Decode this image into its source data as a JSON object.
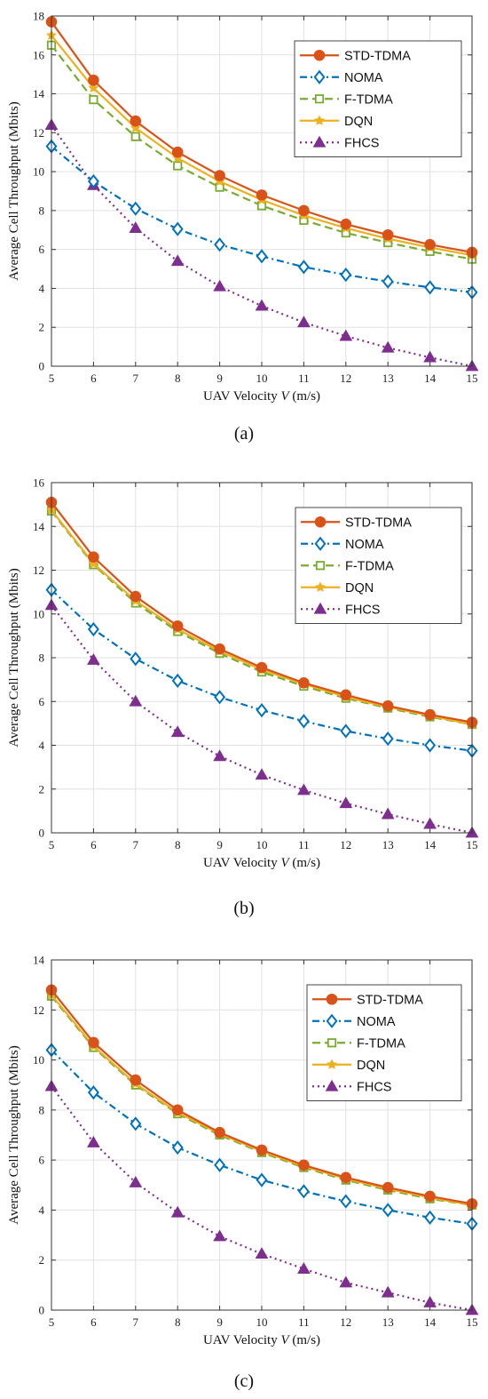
{
  "legend_entries": [
    "STD-TDMA",
    "NOMA",
    "F-TDMA",
    "DQN",
    "FHCS"
  ],
  "series_styles": [
    {
      "color": "#d95319",
      "dash": "",
      "marker": "circle-filled"
    },
    {
      "color": "#0072bd",
      "dash": "8,4,2,4",
      "marker": "diamond-open"
    },
    {
      "color": "#77ac30",
      "dash": "9,5",
      "marker": "square-open"
    },
    {
      "color": "#edb120",
      "dash": "",
      "marker": "star-filled"
    },
    {
      "color": "#7e2f8e",
      "dash": "2,4",
      "marker": "triangle-filled"
    }
  ],
  "chart_data": [
    {
      "type": "line",
      "caption": "(a)",
      "xlabel_prefix": "UAV Velocity ",
      "xlabel_var": "V",
      "xlabel_suffix": " (m/s)",
      "ylabel": "Average Cell Throughput (Mbits)",
      "xlim": [
        5,
        15
      ],
      "ylim": [
        0,
        18
      ],
      "xticks": [
        5,
        6,
        7,
        8,
        9,
        10,
        11,
        12,
        13,
        14,
        15
      ],
      "yticks": [
        0,
        2,
        4,
        6,
        8,
        10,
        12,
        14,
        16,
        18
      ],
      "grid": true,
      "legend_position": "top-right",
      "x": [
        5,
        6,
        7,
        8,
        9,
        10,
        11,
        12,
        13,
        14,
        15
      ],
      "series": [
        {
          "name": "STD-TDMA",
          "values": [
            17.7,
            14.7,
            12.6,
            11.0,
            9.8,
            8.8,
            8.0,
            7.3,
            6.75,
            6.25,
            5.85
          ]
        },
        {
          "name": "NOMA",
          "values": [
            11.3,
            9.5,
            8.1,
            7.05,
            6.25,
            5.65,
            5.1,
            4.7,
            4.35,
            4.05,
            3.8
          ]
        },
        {
          "name": "F-TDMA",
          "values": [
            16.5,
            13.7,
            11.8,
            10.3,
            9.2,
            8.25,
            7.5,
            6.85,
            6.35,
            5.9,
            5.5
          ]
        },
        {
          "name": "DQN",
          "values": [
            17.0,
            14.3,
            12.25,
            10.7,
            9.5,
            8.55,
            7.75,
            7.1,
            6.55,
            6.1,
            5.7
          ]
        },
        {
          "name": "FHCS",
          "values": [
            12.4,
            9.3,
            7.1,
            5.4,
            4.1,
            3.1,
            2.25,
            1.55,
            0.95,
            0.45,
            0.0
          ]
        }
      ]
    },
    {
      "type": "line",
      "caption": "(b)",
      "xlabel_prefix": "UAV Velocity ",
      "xlabel_var": "V",
      "xlabel_suffix": " (m/s)",
      "ylabel": "Average Cell Throughput (Mbits)",
      "xlim": [
        5,
        15
      ],
      "ylim": [
        0,
        16
      ],
      "xticks": [
        5,
        6,
        7,
        8,
        9,
        10,
        11,
        12,
        13,
        14,
        15
      ],
      "yticks": [
        0,
        2,
        4,
        6,
        8,
        10,
        12,
        14,
        16
      ],
      "grid": true,
      "legend_position": "top-right",
      "x": [
        5,
        6,
        7,
        8,
        9,
        10,
        11,
        12,
        13,
        14,
        15
      ],
      "series": [
        {
          "name": "STD-TDMA",
          "values": [
            15.1,
            12.6,
            10.8,
            9.45,
            8.4,
            7.55,
            6.85,
            6.3,
            5.8,
            5.4,
            5.05
          ]
        },
        {
          "name": "NOMA",
          "values": [
            11.1,
            9.3,
            7.95,
            6.95,
            6.2,
            5.6,
            5.1,
            4.65,
            4.3,
            4.0,
            3.75
          ]
        },
        {
          "name": "F-TDMA",
          "values": [
            14.7,
            12.25,
            10.5,
            9.2,
            8.2,
            7.35,
            6.7,
            6.15,
            5.7,
            5.3,
            4.95
          ]
        },
        {
          "name": "DQN",
          "values": [
            14.75,
            12.3,
            10.6,
            9.3,
            8.3,
            7.45,
            6.8,
            6.2,
            5.75,
            5.35,
            4.95
          ]
        },
        {
          "name": "FHCS",
          "values": [
            10.4,
            7.9,
            6.0,
            4.6,
            3.5,
            2.65,
            1.95,
            1.35,
            0.85,
            0.4,
            0.0
          ]
        }
      ]
    },
    {
      "type": "line",
      "caption": "(c)",
      "xlabel_prefix": "UAV Velocity ",
      "xlabel_var": "V",
      "xlabel_suffix": " (m/s)",
      "ylabel": "Average Cell Throughput (Mbits)",
      "xlim": [
        5,
        15
      ],
      "ylim": [
        0,
        14
      ],
      "xticks": [
        5,
        6,
        7,
        8,
        9,
        10,
        11,
        12,
        13,
        14,
        15
      ],
      "yticks": [
        0,
        2,
        4,
        6,
        8,
        10,
        12,
        14
      ],
      "grid": true,
      "legend_position": "top-right",
      "x": [
        5,
        6,
        7,
        8,
        9,
        10,
        11,
        12,
        13,
        14,
        15
      ],
      "series": [
        {
          "name": "STD-TDMA",
          "values": [
            12.8,
            10.7,
            9.2,
            8.0,
            7.1,
            6.4,
            5.8,
            5.3,
            4.9,
            4.55,
            4.25
          ]
        },
        {
          "name": "NOMA",
          "values": [
            10.4,
            8.7,
            7.45,
            6.5,
            5.8,
            5.2,
            4.75,
            4.35,
            4.0,
            3.7,
            3.45
          ]
        },
        {
          "name": "F-TDMA",
          "values": [
            12.55,
            10.5,
            9.0,
            7.85,
            7.0,
            6.3,
            5.7,
            5.2,
            4.8,
            4.45,
            4.2
          ]
        },
        {
          "name": "DQN",
          "values": [
            12.6,
            10.55,
            9.05,
            7.9,
            7.05,
            6.35,
            5.75,
            5.25,
            4.85,
            4.5,
            4.2
          ]
        },
        {
          "name": "FHCS",
          "values": [
            8.95,
            6.7,
            5.1,
            3.9,
            2.95,
            2.25,
            1.65,
            1.1,
            0.7,
            0.3,
            0.0
          ]
        }
      ]
    }
  ]
}
